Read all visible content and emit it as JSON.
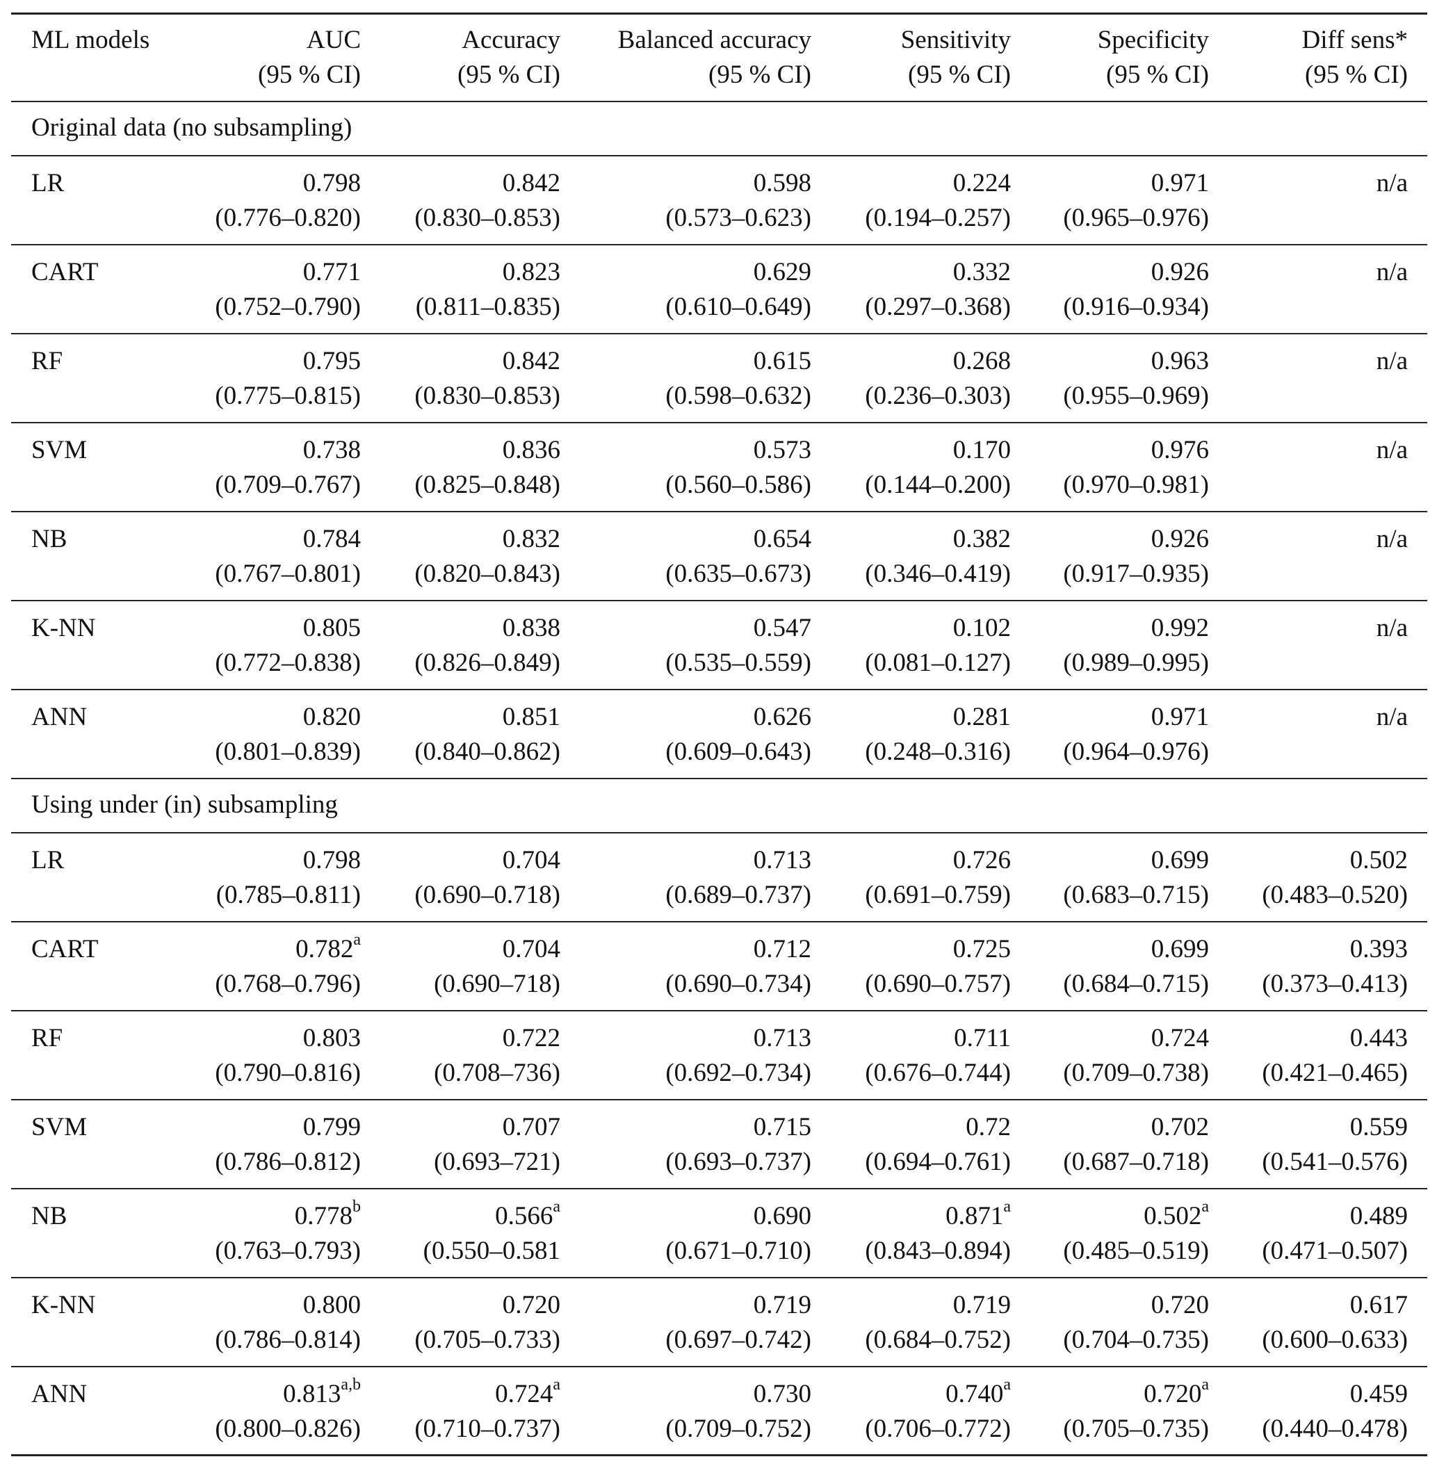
{
  "header": {
    "model_label": "ML models",
    "columns": [
      {
        "title": "AUC",
        "sub": "(95 % CI)"
      },
      {
        "title": "Accuracy",
        "sub": "(95 % CI)"
      },
      {
        "title": "Balanced accuracy",
        "sub": "(95 % CI)"
      },
      {
        "title": "Sensitivity",
        "sub": "(95 % CI)"
      },
      {
        "title": "Specificity",
        "sub": "(95 % CI)"
      },
      {
        "title": "Diff sens*",
        "sub": "(95 % CI)"
      }
    ]
  },
  "sections": [
    {
      "title": "Original data (no subsampling)",
      "rows": [
        {
          "model": "LR",
          "cells": [
            {
              "v": "0.798",
              "sup": "",
              "ci": "(0.776–0.820)"
            },
            {
              "v": "0.842",
              "sup": "",
              "ci": "(0.830–0.853)"
            },
            {
              "v": "0.598",
              "sup": "",
              "ci": "(0.573–0.623)"
            },
            {
              "v": "0.224",
              "sup": "",
              "ci": "(0.194–0.257)"
            },
            {
              "v": "0.971",
              "sup": "",
              "ci": "(0.965–0.976)"
            },
            {
              "v": "n/a",
              "sup": "",
              "ci": ""
            }
          ]
        },
        {
          "model": "CART",
          "cells": [
            {
              "v": "0.771",
              "sup": "",
              "ci": "(0.752–0.790)"
            },
            {
              "v": "0.823",
              "sup": "",
              "ci": "(0.811–0.835)"
            },
            {
              "v": "0.629",
              "sup": "",
              "ci": "(0.610–0.649)"
            },
            {
              "v": "0.332",
              "sup": "",
              "ci": "(0.297–0.368)"
            },
            {
              "v": "0.926",
              "sup": "",
              "ci": "(0.916–0.934)"
            },
            {
              "v": "n/a",
              "sup": "",
              "ci": ""
            }
          ]
        },
        {
          "model": "RF",
          "cells": [
            {
              "v": "0.795",
              "sup": "",
              "ci": "(0.775–0.815)"
            },
            {
              "v": "0.842",
              "sup": "",
              "ci": "(0.830–0.853)"
            },
            {
              "v": "0.615",
              "sup": "",
              "ci": "(0.598–0.632)"
            },
            {
              "v": "0.268",
              "sup": "",
              "ci": "(0.236–0.303)"
            },
            {
              "v": "0.963",
              "sup": "",
              "ci": "(0.955–0.969)"
            },
            {
              "v": "n/a",
              "sup": "",
              "ci": ""
            }
          ]
        },
        {
          "model": "SVM",
          "cells": [
            {
              "v": "0.738",
              "sup": "",
              "ci": "(0.709–0.767)"
            },
            {
              "v": "0.836",
              "sup": "",
              "ci": "(0.825–0.848)"
            },
            {
              "v": "0.573",
              "sup": "",
              "ci": "(0.560–0.586)"
            },
            {
              "v": "0.170",
              "sup": "",
              "ci": "(0.144–0.200)"
            },
            {
              "v": "0.976",
              "sup": "",
              "ci": "(0.970–0.981)"
            },
            {
              "v": "n/a",
              "sup": "",
              "ci": ""
            }
          ]
        },
        {
          "model": "NB",
          "cells": [
            {
              "v": "0.784",
              "sup": "",
              "ci": "(0.767–0.801)"
            },
            {
              "v": "0.832",
              "sup": "",
              "ci": "(0.820–0.843)"
            },
            {
              "v": "0.654",
              "sup": "",
              "ci": "(0.635–0.673)"
            },
            {
              "v": "0.382",
              "sup": "",
              "ci": "(0.346–0.419)"
            },
            {
              "v": "0.926",
              "sup": "",
              "ci": "(0.917–0.935)"
            },
            {
              "v": "n/a",
              "sup": "",
              "ci": ""
            }
          ]
        },
        {
          "model": "K-NN",
          "cells": [
            {
              "v": "0.805",
              "sup": "",
              "ci": "(0.772–0.838)"
            },
            {
              "v": "0.838",
              "sup": "",
              "ci": "(0.826–0.849)"
            },
            {
              "v": "0.547",
              "sup": "",
              "ci": "(0.535–0.559)"
            },
            {
              "v": "0.102",
              "sup": "",
              "ci": "(0.081–0.127)"
            },
            {
              "v": "0.992",
              "sup": "",
              "ci": "(0.989–0.995)"
            },
            {
              "v": "n/a",
              "sup": "",
              "ci": ""
            }
          ]
        },
        {
          "model": "ANN",
          "cells": [
            {
              "v": "0.820",
              "sup": "",
              "ci": "(0.801–0.839)"
            },
            {
              "v": "0.851",
              "sup": "",
              "ci": "(0.840–0.862)"
            },
            {
              "v": "0.626",
              "sup": "",
              "ci": "(0.609–0.643)"
            },
            {
              "v": "0.281",
              "sup": "",
              "ci": "(0.248–0.316)"
            },
            {
              "v": "0.971",
              "sup": "",
              "ci": "(0.964–0.976)"
            },
            {
              "v": "n/a",
              "sup": "",
              "ci": ""
            }
          ]
        }
      ]
    },
    {
      "title": "Using under (in) subsampling",
      "rows": [
        {
          "model": "LR",
          "cells": [
            {
              "v": "0.798",
              "sup": "",
              "ci": "(0.785–0.811)"
            },
            {
              "v": "0.704",
              "sup": "",
              "ci": "(0.690–0.718)"
            },
            {
              "v": "0.713",
              "sup": "",
              "ci": "(0.689–0.737)"
            },
            {
              "v": "0.726",
              "sup": "",
              "ci": "(0.691–0.759)"
            },
            {
              "v": "0.699",
              "sup": "",
              "ci": "(0.683–0.715)"
            },
            {
              "v": "0.502",
              "sup": "",
              "ci": "(0.483–0.520)"
            }
          ]
        },
        {
          "model": "CART",
          "cells": [
            {
              "v": "0.782",
              "sup": "a",
              "ci": "(0.768–0.796)"
            },
            {
              "v": "0.704",
              "sup": "",
              "ci": "(0.690–718)"
            },
            {
              "v": "0.712",
              "sup": "",
              "ci": "(0.690–0.734)"
            },
            {
              "v": "0.725",
              "sup": "",
              "ci": "(0.690–0.757)"
            },
            {
              "v": "0.699",
              "sup": "",
              "ci": "(0.684–0.715)"
            },
            {
              "v": "0.393",
              "sup": "",
              "ci": "(0.373–0.413)"
            }
          ]
        },
        {
          "model": "RF",
          "cells": [
            {
              "v": "0.803",
              "sup": "",
              "ci": "(0.790–0.816)"
            },
            {
              "v": "0.722",
              "sup": "",
              "ci": "(0.708–736)"
            },
            {
              "v": "0.713",
              "sup": "",
              "ci": "(0.692–0.734)"
            },
            {
              "v": "0.711",
              "sup": "",
              "ci": "(0.676–0.744)"
            },
            {
              "v": "0.724",
              "sup": "",
              "ci": "(0.709–0.738)"
            },
            {
              "v": "0.443",
              "sup": "",
              "ci": "(0.421–0.465)"
            }
          ]
        },
        {
          "model": "SVM",
          "cells": [
            {
              "v": "0.799",
              "sup": "",
              "ci": "(0.786–0.812)"
            },
            {
              "v": "0.707",
              "sup": "",
              "ci": "(0.693–721)"
            },
            {
              "v": "0.715",
              "sup": "",
              "ci": "(0.693–0.737)"
            },
            {
              "v": "0.72",
              "sup": "",
              "ci": "(0.694–0.761)"
            },
            {
              "v": "0.702",
              "sup": "",
              "ci": "(0.687–0.718)"
            },
            {
              "v": "0.559",
              "sup": "",
              "ci": "(0.541–0.576)"
            }
          ]
        },
        {
          "model": "NB",
          "cells": [
            {
              "v": "0.778",
              "sup": "b",
              "ci": "(0.763–0.793)"
            },
            {
              "v": "0.566",
              "sup": "a",
              "ci": "(0.550–0.581"
            },
            {
              "v": "0.690",
              "sup": "",
              "ci": "(0.671–0.710)"
            },
            {
              "v": "0.871",
              "sup": "a",
              "ci": "(0.843–0.894)"
            },
            {
              "v": "0.502",
              "sup": "a",
              "ci": "(0.485–0.519)"
            },
            {
              "v": "0.489",
              "sup": "",
              "ci": "(0.471–0.507)"
            }
          ]
        },
        {
          "model": "K-NN",
          "cells": [
            {
              "v": "0.800",
              "sup": "",
              "ci": "(0.786–0.814)"
            },
            {
              "v": "0.720",
              "sup": "",
              "ci": "(0.705–0.733)"
            },
            {
              "v": "0.719",
              "sup": "",
              "ci": "(0.697–0.742)"
            },
            {
              "v": "0.719",
              "sup": "",
              "ci": "(0.684–0.752)"
            },
            {
              "v": "0.720",
              "sup": "",
              "ci": "(0.704–0.735)"
            },
            {
              "v": "0.617",
              "sup": "",
              "ci": "(0.600–0.633)"
            }
          ]
        },
        {
          "model": "ANN",
          "cells": [
            {
              "v": "0.813",
              "sup": "a,b",
              "ci": "(0.800–0.826)"
            },
            {
              "v": "0.724",
              "sup": "a",
              "ci": "(0.710–0.737)"
            },
            {
              "v": "0.730",
              "sup": "",
              "ci": "(0.709–0.752)"
            },
            {
              "v": "0.740",
              "sup": "a",
              "ci": "(0.706–0.772)"
            },
            {
              "v": "0.720",
              "sup": "a",
              "ci": "(0.705–0.735)"
            },
            {
              "v": "0.459",
              "sup": "",
              "ci": "(0.440–0.478)"
            }
          ]
        }
      ]
    }
  ]
}
